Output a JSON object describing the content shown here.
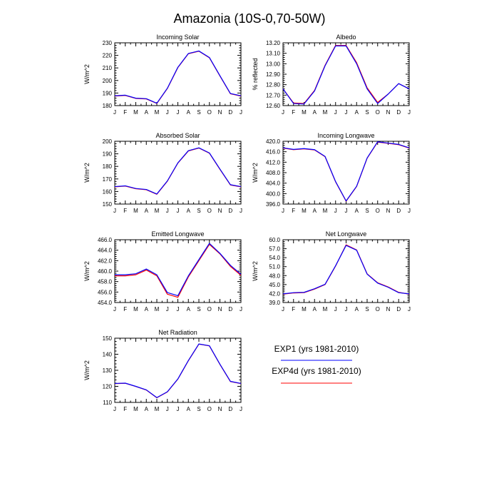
{
  "page_title": "Amazonia (10S-0,70-50W)",
  "legend": [
    {
      "label": "EXP1 (yrs 1981-2010)",
      "color": "#0000ff"
    },
    {
      "label": "EXP4d (yrs 1981-2010)",
      "color": "#ff0000"
    }
  ],
  "chart_data": [
    {
      "type": "line",
      "title": "Incoming Solar",
      "ylabel": "W/m^2",
      "categories": [
        "J",
        "F",
        "M",
        "A",
        "M",
        "J",
        "J",
        "A",
        "S",
        "O",
        "N",
        "D",
        "J"
      ],
      "ylim": [
        180,
        230
      ],
      "yticks": [
        180,
        190,
        200,
        210,
        220,
        230
      ],
      "ytick_decimals": 0,
      "series": [
        {
          "name": "EXP1 (yrs 1981-2010)",
          "color": "#0000ff",
          "values": [
            187.8,
            188.3,
            185.9,
            185.5,
            181.9,
            193.8,
            210.5,
            221.5,
            223.5,
            218.3,
            203.8,
            189.6,
            187.8
          ]
        },
        {
          "name": "EXP4d (yrs 1981-2010)",
          "color": "#ff0000",
          "values": [
            187.6,
            188.1,
            185.7,
            185.3,
            181.7,
            193.6,
            210.3,
            221.3,
            223.3,
            218.1,
            203.6,
            189.4,
            187.6
          ]
        }
      ]
    },
    {
      "type": "line",
      "title": "Albedo",
      "ylabel": "% reflected",
      "categories": [
        "J",
        "F",
        "M",
        "A",
        "M",
        "J",
        "J",
        "A",
        "S",
        "O",
        "N",
        "D",
        "J"
      ],
      "ylim": [
        12.6,
        13.2
      ],
      "yticks": [
        12.6,
        12.7,
        12.8,
        12.9,
        13.0,
        13.1,
        13.2
      ],
      "ytick_decimals": 2,
      "series": [
        {
          "name": "EXP1 (yrs 1981-2010)",
          "color": "#0000ff",
          "values": [
            12.76,
            12.62,
            12.615,
            12.74,
            12.98,
            13.17,
            13.17,
            13.0,
            12.76,
            12.62,
            12.71,
            12.81,
            12.76
          ]
        },
        {
          "name": "EXP4d (yrs 1981-2010)",
          "color": "#ff0000",
          "values": [
            12.76,
            12.625,
            12.62,
            12.745,
            12.985,
            13.175,
            13.175,
            13.01,
            12.77,
            12.63,
            12.71,
            12.81,
            12.76
          ]
        }
      ]
    },
    {
      "type": "line",
      "title": "Absorbed Solar",
      "ylabel": "W/m^2",
      "categories": [
        "J",
        "F",
        "M",
        "A",
        "M",
        "J",
        "J",
        "A",
        "S",
        "O",
        "N",
        "D",
        "J"
      ],
      "ylim": [
        150,
        200
      ],
      "yticks": [
        150,
        160,
        170,
        180,
        190,
        200
      ],
      "ytick_decimals": 0,
      "series": [
        {
          "name": "EXP1 (yrs 1981-2010)",
          "color": "#0000ff",
          "values": [
            163.9,
            164.5,
            162.4,
            161.6,
            158.0,
            168.4,
            182.8,
            192.5,
            194.8,
            190.7,
            177.9,
            165.4,
            163.9
          ]
        },
        {
          "name": "EXP4d (yrs 1981-2010)",
          "color": "#ff0000",
          "values": [
            163.7,
            164.3,
            162.2,
            161.4,
            157.8,
            168.2,
            182.6,
            192.3,
            194.6,
            190.5,
            177.7,
            165.2,
            163.7
          ]
        }
      ]
    },
    {
      "type": "line",
      "title": "Incoming Longwave",
      "ylabel": "W/m^2",
      "categories": [
        "J",
        "F",
        "M",
        "A",
        "M",
        "J",
        "J",
        "A",
        "S",
        "O",
        "N",
        "D",
        "J"
      ],
      "ylim": [
        396,
        420
      ],
      "yticks": [
        396,
        400,
        404,
        408,
        412,
        416,
        420
      ],
      "ytick_decimals": 1,
      "series": [
        {
          "name": "EXP1 (yrs 1981-2010)",
          "color": "#0000ff",
          "values": [
            417.5,
            416.9,
            417.2,
            416.8,
            414.2,
            404.6,
            397.2,
            402.8,
            413.6,
            419.8,
            419.3,
            418.8,
            417.5
          ]
        },
        {
          "name": "EXP4d (yrs 1981-2010)",
          "color": "#ff0000",
          "values": [
            417.4,
            416.8,
            417.1,
            416.7,
            414.1,
            404.5,
            397.1,
            402.7,
            413.5,
            419.7,
            419.2,
            418.7,
            417.4
          ]
        }
      ]
    },
    {
      "type": "line",
      "title": "Emitted Longwave",
      "ylabel": "W/m^2",
      "categories": [
        "J",
        "F",
        "M",
        "A",
        "M",
        "J",
        "J",
        "A",
        "S",
        "O",
        "N",
        "D",
        "J"
      ],
      "ylim": [
        454,
        466
      ],
      "yticks": [
        454,
        456,
        458,
        460,
        462,
        464,
        466
      ],
      "ytick_decimals": 1,
      "series": [
        {
          "name": "EXP1 (yrs 1981-2010)",
          "color": "#0000ff",
          "values": [
            459.3,
            459.3,
            459.5,
            460.4,
            459.3,
            455.9,
            455.3,
            459.1,
            462.2,
            465.3,
            463.4,
            461.1,
            459.4
          ]
        },
        {
          "name": "EXP4d (yrs 1981-2010)",
          "color": "#ff0000",
          "values": [
            459.1,
            459.1,
            459.3,
            460.2,
            459.1,
            455.6,
            455.0,
            458.9,
            462.0,
            465.1,
            463.3,
            460.9,
            459.2
          ]
        }
      ]
    },
    {
      "type": "line",
      "title": "Net Longwave",
      "ylabel": "W/m^2",
      "categories": [
        "J",
        "F",
        "M",
        "A",
        "M",
        "J",
        "J",
        "A",
        "S",
        "O",
        "N",
        "D",
        "J"
      ],
      "ylim": [
        39,
        60
      ],
      "yticks": [
        39,
        42,
        45,
        48,
        51,
        54,
        57,
        60
      ],
      "ytick_decimals": 1,
      "series": [
        {
          "name": "EXP1 (yrs 1981-2010)",
          "color": "#0000ff",
          "values": [
            41.9,
            42.3,
            42.4,
            43.6,
            45.1,
            51.3,
            58.1,
            56.5,
            48.5,
            45.5,
            44.1,
            42.3,
            41.9
          ]
        },
        {
          "name": "EXP4d (yrs 1981-2010)",
          "color": "#ff0000",
          "values": [
            41.8,
            42.2,
            42.3,
            43.5,
            45.0,
            51.2,
            58.3,
            56.6,
            48.6,
            45.6,
            44.2,
            42.4,
            41.8
          ]
        }
      ]
    },
    {
      "type": "line",
      "title": "Net Radiation",
      "ylabel": "W/m^2",
      "categories": [
        "J",
        "F",
        "M",
        "A",
        "M",
        "J",
        "J",
        "A",
        "S",
        "O",
        "N",
        "D",
        "J"
      ],
      "ylim": [
        110,
        150
      ],
      "yticks": [
        110,
        120,
        130,
        140,
        150
      ],
      "ytick_decimals": 0,
      "series": [
        {
          "name": "EXP1 (yrs 1981-2010)",
          "color": "#0000ff",
          "values": [
            121.8,
            122.0,
            120.0,
            117.8,
            113.0,
            116.6,
            124.6,
            136.1,
            146.4,
            145.3,
            133.8,
            123.1,
            121.8
          ]
        },
        {
          "name": "EXP4d (yrs 1981-2010)",
          "color": "#ff0000",
          "values": [
            121.7,
            121.9,
            119.9,
            117.7,
            112.9,
            116.5,
            124.5,
            136.0,
            146.3,
            145.2,
            133.7,
            123.0,
            121.7
          ]
        }
      ]
    }
  ]
}
